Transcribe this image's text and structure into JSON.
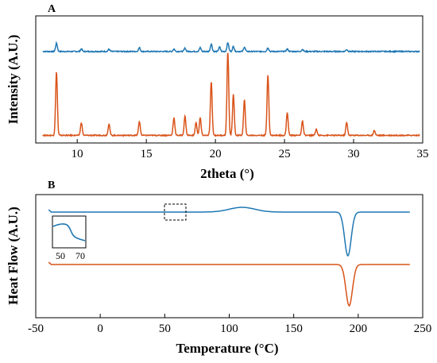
{
  "colors": {
    "blue": "#1f77b4",
    "orange": "#d95319",
    "axis": "#000000"
  },
  "chart_data": [
    {
      "panel": "A",
      "type": "line",
      "xlabel": "2theta (°)",
      "ylabel": "Intensity (A.U.)",
      "xlim": [
        7,
        35
      ],
      "ylim": [
        0,
        1
      ],
      "xticks": [
        10,
        15,
        20,
        25,
        30,
        35
      ],
      "grid": false,
      "peaks": [
        {
          "series": "blue",
          "x": [
            8.5,
            10.3,
            12.3,
            14.5,
            17.0,
            17.8,
            18.9,
            19.7,
            20.3,
            20.9,
            21.3,
            22.1,
            23.8,
            25.2,
            26.3,
            29.5
          ],
          "y": [
            0.065,
            0.02,
            0.018,
            0.03,
            0.02,
            0.025,
            0.03,
            0.06,
            0.035,
            0.07,
            0.04,
            0.035,
            0.03,
            0.02,
            0.015,
            0.015
          ]
        },
        {
          "series": "orange",
          "x": [
            8.5,
            10.3,
            12.3,
            14.5,
            17.0,
            17.8,
            18.6,
            18.9,
            19.7,
            20.9,
            21.3,
            22.1,
            23.8,
            25.2,
            26.3,
            27.3,
            29.5,
            31.5
          ],
          "y": [
            0.5,
            0.1,
            0.09,
            0.11,
            0.14,
            0.15,
            0.1,
            0.14,
            0.42,
            0.66,
            0.32,
            0.28,
            0.48,
            0.18,
            0.11,
            0.05,
            0.1,
            0.04
          ]
        }
      ]
    },
    {
      "panel": "B",
      "type": "line",
      "xlabel": "Temperature (°C)",
      "ylabel": "Heat Flow (A.U.)",
      "xlim": [
        -50,
        250
      ],
      "xticks": [
        -50,
        0,
        50,
        100,
        150,
        200,
        250
      ],
      "grid": false,
      "inset_ticks": [
        "50",
        "70"
      ],
      "events": [
        {
          "series": "blue",
          "baseline": 0.0,
          "start": -40,
          "end": 240,
          "hump_center": 110,
          "hump_height": 0.06,
          "dip_center": 192,
          "dip_depth": 0.55
        },
        {
          "series": "orange",
          "baseline": -0.72,
          "start": -40,
          "end": 240,
          "dip_center": 193,
          "dip_depth": 0.52
        }
      ]
    }
  ],
  "panel_labels": [
    "A",
    "B"
  ]
}
